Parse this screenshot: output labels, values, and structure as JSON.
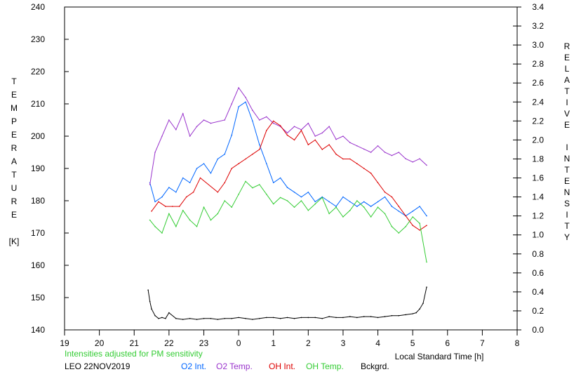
{
  "chart_data": {
    "type": "line",
    "xlabel": "Local Standard Time [h]",
    "ylabel_left": [
      "T",
      "E",
      "M",
      "P",
      "E",
      "R",
      "A",
      "T",
      "U",
      "R",
      "E",
      "",
      "[K]"
    ],
    "ylabel_right": [
      "R",
      "E",
      "L",
      "A",
      "T",
      "I",
      "V",
      "E",
      "",
      "I",
      "N",
      "T",
      "E",
      "N",
      "S",
      "I",
      "T",
      "Y"
    ],
    "x_ticks": [
      "19",
      "20",
      "21",
      "22",
      "23",
      "0",
      "1",
      "2",
      "3",
      "4",
      "5",
      "6",
      "7",
      "8"
    ],
    "x_range": [
      19,
      32
    ],
    "y_left_ticks": [
      "140",
      "150",
      "160",
      "170",
      "180",
      "190",
      "200",
      "210",
      "220",
      "230",
      "240"
    ],
    "y_left_range": [
      140,
      240
    ],
    "y_right_ticks": [
      "0.0",
      "0.2",
      "0.4",
      "0.6",
      "0.8",
      "1.0",
      "1.2",
      "1.4",
      "1.6",
      "1.8",
      "2.0",
      "2.2",
      "2.4",
      "2.6",
      "2.8",
      "3.0",
      "3.2",
      "3.4"
    ],
    "y_right_range": [
      0,
      3.4
    ],
    "note": "Intensities adjusted for PM sensitivity",
    "station": "LEO 22NOV2019",
    "series": [
      {
        "name": "O2 Int.",
        "color": "#0066ff",
        "axis": "right",
        "x": [
          21.45,
          21.6,
          21.8,
          22.0,
          22.2,
          22.4,
          22.6,
          22.8,
          23.0,
          23.2,
          23.4,
          23.6,
          23.8,
          24.0,
          24.2,
          24.4,
          24.6,
          24.8,
          25.0,
          25.2,
          25.4,
          25.6,
          25.8,
          26.0,
          26.2,
          26.4,
          26.6,
          26.8,
          27.0,
          27.2,
          27.4,
          27.6,
          27.8,
          28.0,
          28.2,
          28.4,
          28.6,
          28.8,
          29.0,
          29.2,
          29.4
        ],
        "y": [
          1.55,
          1.35,
          1.4,
          1.5,
          1.45,
          1.6,
          1.55,
          1.7,
          1.75,
          1.65,
          1.8,
          1.85,
          2.05,
          2.35,
          2.4,
          2.2,
          1.95,
          1.75,
          1.55,
          1.6,
          1.5,
          1.45,
          1.4,
          1.45,
          1.35,
          1.4,
          1.35,
          1.3,
          1.4,
          1.35,
          1.3,
          1.35,
          1.3,
          1.35,
          1.4,
          1.3,
          1.25,
          1.2,
          1.25,
          1.3,
          1.2
        ]
      },
      {
        "name": "O2 Temp.",
        "color": "#9933cc",
        "axis": "left",
        "x": [
          21.45,
          21.6,
          21.8,
          22.0,
          22.2,
          22.4,
          22.6,
          22.8,
          23.0,
          23.2,
          23.6,
          23.8,
          24.0,
          24.2,
          24.4,
          24.6,
          24.8,
          25.0,
          25.2,
          25.4,
          25.6,
          25.8,
          26.0,
          26.2,
          26.4,
          26.6,
          26.8,
          27.0,
          27.2,
          27.4,
          27.6,
          27.8,
          28.0,
          28.2,
          28.4,
          28.6,
          28.8,
          29.0,
          29.2,
          29.4
        ],
        "y": [
          185,
          195,
          200,
          205,
          202,
          207,
          200,
          203,
          205,
          204,
          205,
          210,
          215,
          212,
          208,
          205,
          206,
          204,
          203,
          201,
          203,
          202,
          204,
          200,
          201,
          203,
          199,
          200,
          198,
          197,
          196,
          195,
          197,
          195,
          194,
          195,
          193,
          192,
          193,
          191
        ]
      },
      {
        "name": "OH Int.",
        "color": "#dd0000",
        "axis": "right",
        "x": [
          21.5,
          21.7,
          21.9,
          22.1,
          22.3,
          22.5,
          22.7,
          22.9,
          23.4,
          23.6,
          23.8,
          24.0,
          24.2,
          24.4,
          24.6,
          24.8,
          25.0,
          25.2,
          25.4,
          25.6,
          25.8,
          26.0,
          26.2,
          26.4,
          26.6,
          26.8,
          27.0,
          27.2,
          27.4,
          27.6,
          27.8,
          28.0,
          28.2,
          28.4,
          28.6,
          28.8,
          29.0,
          29.2,
          29.4
        ],
        "y": [
          1.25,
          1.35,
          1.3,
          1.3,
          1.3,
          1.4,
          1.45,
          1.6,
          1.45,
          1.55,
          1.7,
          1.75,
          1.8,
          1.85,
          1.9,
          2.1,
          2.2,
          2.15,
          2.05,
          2.0,
          2.1,
          1.95,
          2.0,
          1.9,
          1.95,
          1.85,
          1.8,
          1.8,
          1.75,
          1.7,
          1.65,
          1.55,
          1.45,
          1.4,
          1.3,
          1.2,
          1.1,
          1.05,
          1.1
        ]
      },
      {
        "name": "OH Temp.",
        "color": "#33cc33",
        "axis": "left",
        "x": [
          21.45,
          21.6,
          21.8,
          22.0,
          22.2,
          22.4,
          22.6,
          22.8,
          23.0,
          23.2,
          23.4,
          23.6,
          23.8,
          24.0,
          24.2,
          24.4,
          24.6,
          24.8,
          25.0,
          25.2,
          25.4,
          25.6,
          25.8,
          26.0,
          26.2,
          26.4,
          26.6,
          26.8,
          27.0,
          27.2,
          27.4,
          27.6,
          27.8,
          28.0,
          28.2,
          28.4,
          28.6,
          28.8,
          29.0,
          29.2,
          29.4
        ],
        "y": [
          174,
          172,
          170,
          176,
          172,
          177,
          174,
          172,
          178,
          174,
          176,
          180,
          178,
          182,
          186,
          184,
          185,
          182,
          179,
          181,
          180,
          178,
          180,
          177,
          179,
          181,
          176,
          178,
          175,
          177,
          180,
          178,
          175,
          178,
          176,
          172,
          170,
          172,
          175,
          173,
          161
        ]
      },
      {
        "name": "Bckgrd.",
        "color": "#000000",
        "axis": "right",
        "x": [
          21.4,
          21.45,
          21.5,
          21.6,
          21.7,
          21.8,
          21.9,
          22.0,
          22.2,
          22.4,
          22.6,
          22.8,
          23.0,
          23.2,
          23.4,
          23.6,
          23.8,
          24.0,
          24.2,
          24.4,
          24.6,
          24.8,
          25.0,
          25.2,
          25.4,
          25.6,
          25.8,
          26.0,
          26.2,
          26.4,
          26.6,
          26.8,
          27.0,
          27.2,
          27.4,
          27.6,
          27.8,
          28.0,
          28.2,
          28.4,
          28.6,
          28.8,
          29.0,
          29.1,
          29.2,
          29.3,
          29.4
        ],
        "y": [
          0.42,
          0.3,
          0.22,
          0.15,
          0.12,
          0.13,
          0.12,
          0.18,
          0.12,
          0.11,
          0.12,
          0.11,
          0.12,
          0.12,
          0.11,
          0.12,
          0.12,
          0.13,
          0.12,
          0.11,
          0.12,
          0.13,
          0.13,
          0.12,
          0.13,
          0.12,
          0.13,
          0.13,
          0.13,
          0.12,
          0.14,
          0.13,
          0.13,
          0.14,
          0.13,
          0.14,
          0.14,
          0.13,
          0.14,
          0.15,
          0.15,
          0.16,
          0.17,
          0.18,
          0.22,
          0.28,
          0.45
        ]
      }
    ]
  }
}
